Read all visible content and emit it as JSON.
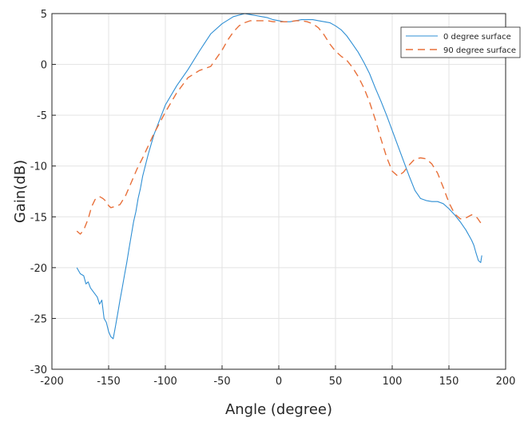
{
  "chart_data": {
    "type": "line",
    "xlabel": "Angle (degree)",
    "ylabel": "Gain(dB)",
    "xlim": [
      -200,
      200
    ],
    "ylim": [
      -30,
      5
    ],
    "xticks": [
      -200,
      -150,
      -100,
      -50,
      0,
      50,
      100,
      150,
      200
    ],
    "yticks": [
      5,
      0,
      -5,
      -10,
      -15,
      -20,
      -25,
      -30
    ],
    "grid": true,
    "legend_position": "top-right",
    "series": [
      {
        "name": "0 degree surface",
        "color": "#2f8fd4",
        "style": "solid",
        "x": [
          -178,
          -175,
          -172,
          -170,
          -168,
          -166,
          -164,
          -162,
          -160,
          -158,
          -156,
          -154,
          -152,
          -150,
          -148,
          -146,
          -144,
          -142,
          -140,
          -138,
          -136,
          -134,
          -132,
          -130,
          -128,
          -126,
          -124,
          -122,
          -120,
          -115,
          -110,
          -100,
          -90,
          -80,
          -70,
          -60,
          -50,
          -40,
          -30,
          -25,
          -20,
          -15,
          -10,
          -5,
          0,
          5,
          10,
          15,
          20,
          25,
          30,
          35,
          40,
          45,
          50,
          55,
          60,
          65,
          70,
          75,
          80,
          85,
          90,
          95,
          100,
          105,
          110,
          115,
          120,
          125,
          130,
          135,
          140,
          145,
          150,
          155,
          160,
          165,
          170,
          172,
          174,
          176,
          178,
          179
        ],
        "y": [
          -20.0,
          -20.6,
          -20.8,
          -21.6,
          -21.4,
          -22.0,
          -22.3,
          -22.6,
          -22.9,
          -23.6,
          -23.2,
          -25.0,
          -25.4,
          -26.3,
          -26.8,
          -27.0,
          -25.8,
          -24.5,
          -23.2,
          -22.0,
          -20.7,
          -19.5,
          -18.1,
          -16.8,
          -15.5,
          -14.5,
          -13.2,
          -12.2,
          -11.0,
          -8.8,
          -6.9,
          -4.0,
          -2.1,
          -0.5,
          1.3,
          3.0,
          4.0,
          4.7,
          5.0,
          4.9,
          4.8,
          4.7,
          4.6,
          4.4,
          4.3,
          4.2,
          4.2,
          4.3,
          4.4,
          4.4,
          4.4,
          4.3,
          4.2,
          4.1,
          3.8,
          3.4,
          2.8,
          2.0,
          1.2,
          0.2,
          -0.9,
          -2.3,
          -3.6,
          -5.0,
          -6.5,
          -8.0,
          -9.5,
          -11.0,
          -12.4,
          -13.2,
          -13.4,
          -13.5,
          -13.5,
          -13.7,
          -14.2,
          -14.8,
          -15.5,
          -16.3,
          -17.3,
          -17.8,
          -18.6,
          -19.3,
          -19.5,
          -18.8
        ]
      },
      {
        "name": "90 degree surface",
        "color": "#e8703a",
        "style": "dashed",
        "x": [
          -178,
          -175,
          -172,
          -168,
          -165,
          -162,
          -158,
          -155,
          -152,
          -150,
          -148,
          -145,
          -140,
          -135,
          -130,
          -125,
          -120,
          -115,
          -110,
          -100,
          -90,
          -80,
          -70,
          -60,
          -55,
          -50,
          -45,
          -40,
          -35,
          -30,
          -25,
          -20,
          -15,
          -10,
          -5,
          0,
          5,
          10,
          15,
          20,
          25,
          30,
          35,
          40,
          45,
          50,
          55,
          60,
          65,
          70,
          75,
          80,
          85,
          90,
          95,
          100,
          105,
          110,
          115,
          120,
          125,
          130,
          135,
          140,
          145,
          150,
          155,
          160,
          165,
          170,
          175,
          178
        ],
        "y": [
          -16.4,
          -16.7,
          -16.3,
          -15.2,
          -14.0,
          -13.3,
          -13.0,
          -13.2,
          -13.5,
          -13.9,
          -14.1,
          -14.0,
          -13.8,
          -12.9,
          -11.6,
          -10.3,
          -9.2,
          -8.0,
          -6.8,
          -4.7,
          -2.8,
          -1.3,
          -0.6,
          -0.2,
          0.6,
          1.4,
          2.4,
          3.2,
          3.8,
          4.1,
          4.3,
          4.3,
          4.3,
          4.3,
          4.2,
          4.2,
          4.2,
          4.2,
          4.3,
          4.3,
          4.2,
          4.0,
          3.6,
          2.9,
          2.0,
          1.3,
          0.8,
          0.4,
          -0.3,
          -1.2,
          -2.3,
          -3.7,
          -5.4,
          -7.3,
          -9.1,
          -10.5,
          -11.0,
          -10.6,
          -9.9,
          -9.3,
          -9.2,
          -9.3,
          -9.8,
          -10.7,
          -12.1,
          -13.6,
          -14.7,
          -15.2,
          -15.1,
          -14.8,
          -15.1,
          -15.6
        ]
      }
    ]
  }
}
